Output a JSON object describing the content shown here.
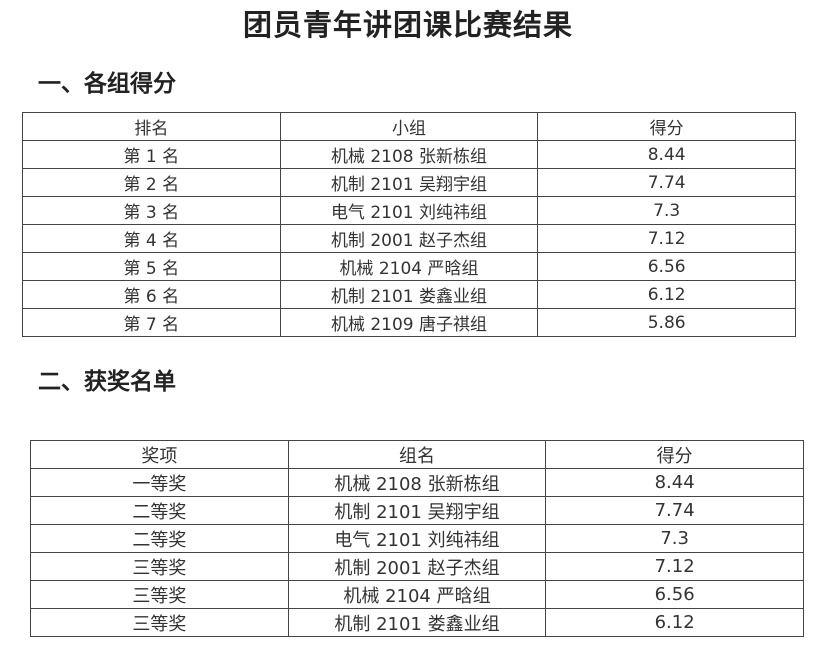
{
  "title": "团员青年讲团课比赛结果",
  "section1": {
    "heading": "一、各组得分",
    "headers": [
      "排名",
      "小组",
      "得分"
    ],
    "rows": [
      [
        "第 1 名",
        "机械 2108 张新栋组",
        "8.44"
      ],
      [
        "第 2 名",
        "机制 2101 吴翔宇组",
        "7.74"
      ],
      [
        "第 3 名",
        "电气 2101 刘纯祎组",
        "7.3"
      ],
      [
        "第 4 名",
        "机制 2001 赵子杰组",
        "7.12"
      ],
      [
        "第 5 名",
        "机械 2104 严晗组",
        "6.56"
      ],
      [
        "第 6 名",
        "机制 2101 娄鑫业组",
        "6.12"
      ],
      [
        "第 7 名",
        "机械 2109 唐子祺组",
        "5.86"
      ]
    ]
  },
  "section2": {
    "heading": "二、获奖名单",
    "headers": [
      "奖项",
      "组名",
      "得分"
    ],
    "rows": [
      [
        "一等奖",
        "机械 2108 张新栋组",
        "8.44"
      ],
      [
        "二等奖",
        "机制 2101 吴翔宇组",
        "7.74"
      ],
      [
        "二等奖",
        "电气 2101 刘纯祎组",
        "7.3"
      ],
      [
        "三等奖",
        "机制 2001 赵子杰组",
        "7.12"
      ],
      [
        "三等奖",
        "机械 2104 严晗组",
        "6.56"
      ],
      [
        "三等奖",
        "机制 2101 娄鑫业组",
        "6.12"
      ]
    ]
  }
}
